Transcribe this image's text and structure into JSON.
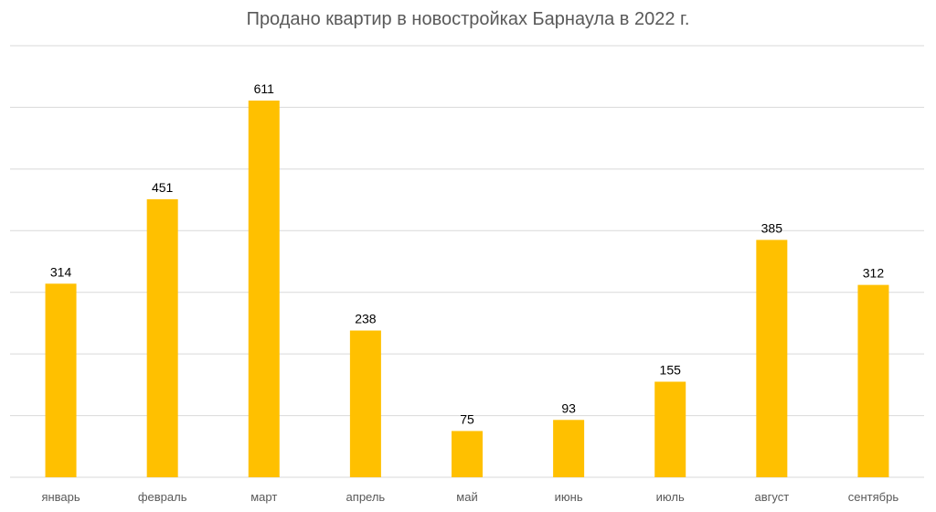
{
  "chart_data": {
    "type": "bar",
    "title": "Продано квартир в новостройках Барнаула в 2022 г.",
    "categories": [
      "январь",
      "февраль",
      "март",
      "апрель",
      "май",
      "июнь",
      "июль",
      "август",
      "сентябрь"
    ],
    "values": [
      314,
      451,
      611,
      238,
      75,
      93,
      155,
      385,
      312
    ],
    "data_labels": [
      "314",
      "451",
      "611",
      "238",
      "75",
      "93",
      "155",
      "385",
      "312"
    ],
    "ylim": [
      0,
      700
    ],
    "grid": true,
    "y_tick_labels_visible": false,
    "bar_color": "#FFC000",
    "gridline_color": "#D9D9D9",
    "label_color": "#000000",
    "category_label_color": "#595959"
  }
}
